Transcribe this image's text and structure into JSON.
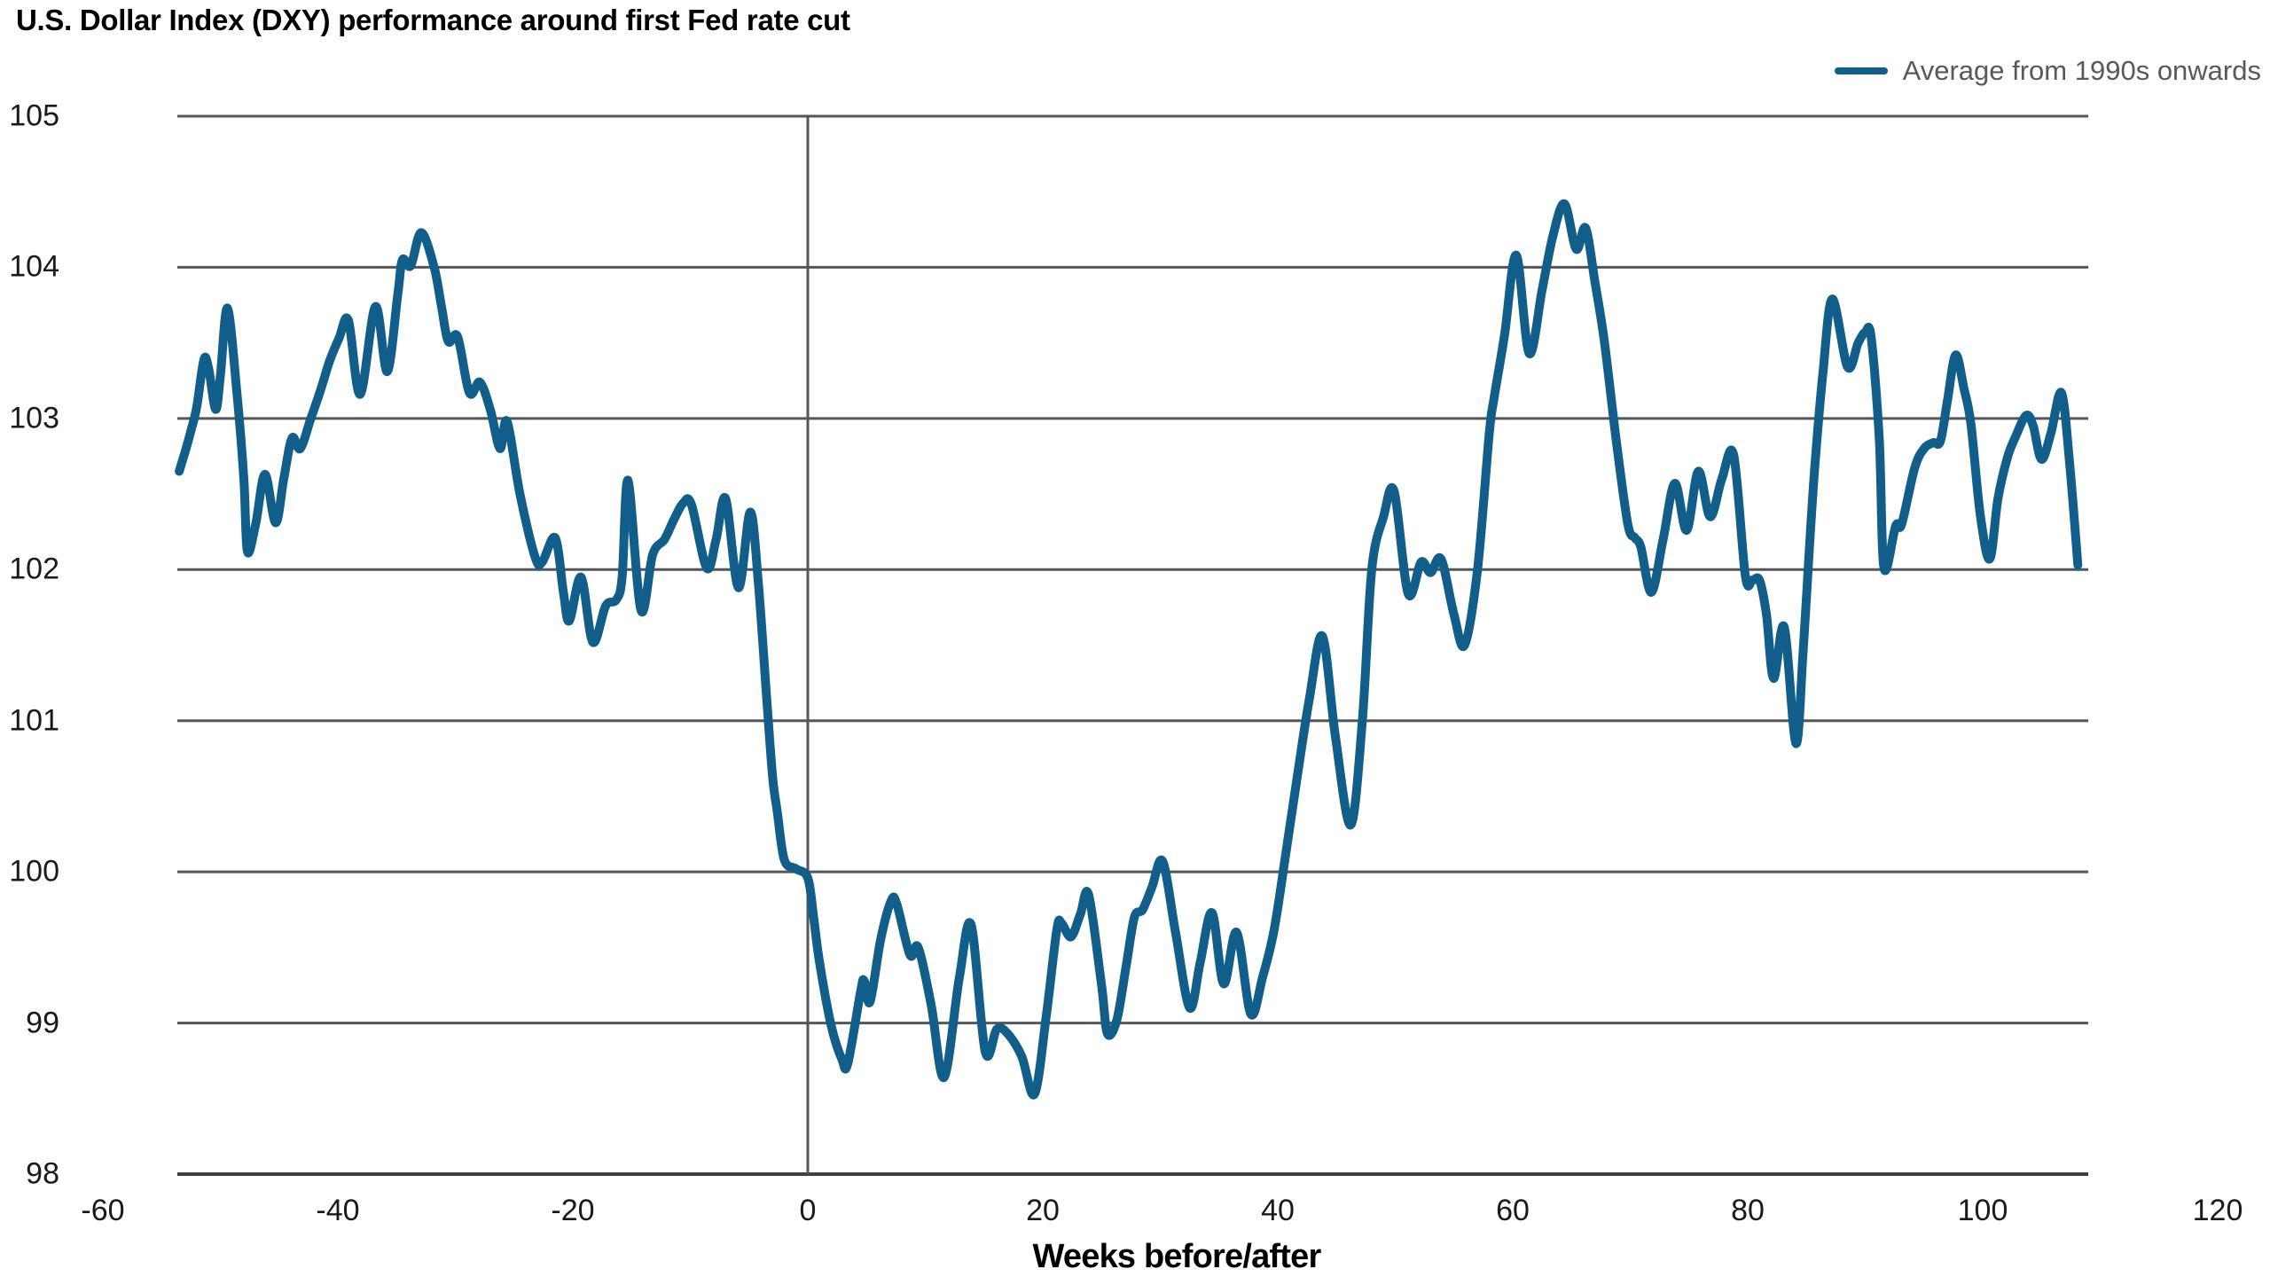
{
  "page": {
    "title": "U.S. Dollar Index (DXY) performance around first Fed rate cut"
  },
  "legend": {
    "label": "Average from 1990s onwards"
  },
  "colors": {
    "line": "#115E8A",
    "gridline": "#55565A",
    "axis_line": "#3F4043",
    "zero_line": "#55565A",
    "axis_text": "#1A1A1A",
    "legend_text": "#58595B",
    "background": "#FFFFFF"
  },
  "chart_data": {
    "type": "line",
    "title": "U.S. Dollar Index (DXY) performance around first Fed rate cut",
    "xlabel": "Weeks before/after",
    "ylabel": "",
    "xlim": [
      -60,
      120
    ],
    "ylim": [
      98,
      105
    ],
    "x_ticks": [
      -60,
      -40,
      -20,
      0,
      20,
      40,
      60,
      80,
      100,
      120
    ],
    "y_ticks": [
      98,
      99,
      100,
      101,
      102,
      103,
      104,
      105
    ],
    "grid": "horizontal",
    "vertical_reference_line_at_week": 0,
    "legend_position": "top-right",
    "series": [
      {
        "name": "Average from 1990s onwards",
        "color": "#115E8A",
        "points": [
          [
            -53.5,
            102.65
          ],
          [
            -53,
            102.78
          ],
          [
            -52.5,
            102.92
          ],
          [
            -52,
            103.08
          ],
          [
            -51.4,
            103.39
          ],
          [
            -51,
            103.33
          ],
          [
            -50.4,
            103.06
          ],
          [
            -50,
            103.28
          ],
          [
            -49.4,
            103.73
          ],
          [
            -48.6,
            103.18
          ],
          [
            -48,
            102.6
          ],
          [
            -47.7,
            102.12
          ],
          [
            -47,
            102.3
          ],
          [
            -46.2,
            102.63
          ],
          [
            -45.3,
            102.31
          ],
          [
            -44.6,
            102.6
          ],
          [
            -43.9,
            102.87
          ],
          [
            -43.2,
            102.8
          ],
          [
            -42.3,
            103.0
          ],
          [
            -41.5,
            103.18
          ],
          [
            -40.7,
            103.38
          ],
          [
            -39.9,
            103.53
          ],
          [
            -39.1,
            103.65
          ],
          [
            -38.1,
            103.16
          ],
          [
            -36.8,
            103.74
          ],
          [
            -35.8,
            103.31
          ],
          [
            -34.9,
            103.82
          ],
          [
            -34.5,
            104.05
          ],
          [
            -33.8,
            104.01
          ],
          [
            -32.9,
            104.23
          ],
          [
            -31.8,
            104.0
          ],
          [
            -31.2,
            103.75
          ],
          [
            -30.6,
            103.51
          ],
          [
            -29.8,
            103.54
          ],
          [
            -28.8,
            103.17
          ],
          [
            -27.9,
            103.24
          ],
          [
            -27,
            103.05
          ],
          [
            -26.2,
            102.8
          ],
          [
            -25.6,
            102.98
          ],
          [
            -24.5,
            102.5
          ],
          [
            -23.2,
            102.08
          ],
          [
            -22.6,
            102.05
          ],
          [
            -21.5,
            102.21
          ],
          [
            -20.8,
            101.85
          ],
          [
            -20.3,
            101.66
          ],
          [
            -19.3,
            101.95
          ],
          [
            -18.3,
            101.52
          ],
          [
            -17.2,
            101.76
          ],
          [
            -16.3,
            101.8
          ],
          [
            -15.8,
            101.95
          ],
          [
            -15.3,
            102.59
          ],
          [
            -14.2,
            101.73
          ],
          [
            -13.2,
            102.1
          ],
          [
            -12.2,
            102.2
          ],
          [
            -11.4,
            102.33
          ],
          [
            -10.6,
            102.44
          ],
          [
            -9.9,
            102.43
          ],
          [
            -8.6,
            102.01
          ],
          [
            -7.8,
            102.2
          ],
          [
            -7,
            102.47
          ],
          [
            -5.9,
            101.88
          ],
          [
            -4.9,
            102.38
          ],
          [
            -4.2,
            101.9
          ],
          [
            -3.5,
            101.15
          ],
          [
            -3,
            100.63
          ],
          [
            -2.6,
            100.4
          ],
          [
            -2,
            100.08
          ],
          [
            -1,
            100.02
          ],
          [
            0,
            99.96
          ],
          [
            0.5,
            99.7
          ],
          [
            1,
            99.4
          ],
          [
            2,
            98.98
          ],
          [
            2.9,
            98.76
          ],
          [
            3.4,
            98.73
          ],
          [
            4.5,
            99.21
          ],
          [
            4.8,
            99.28
          ],
          [
            5.3,
            99.14
          ],
          [
            6.2,
            99.55
          ],
          [
            7.1,
            99.81
          ],
          [
            7.6,
            99.78
          ],
          [
            8.7,
            99.45
          ],
          [
            9.4,
            99.5
          ],
          [
            10.5,
            99.12
          ],
          [
            11.6,
            98.64
          ],
          [
            12.9,
            99.3
          ],
          [
            13.9,
            99.65
          ],
          [
            15.1,
            98.81
          ],
          [
            16.1,
            98.96
          ],
          [
            17,
            98.93
          ],
          [
            18.2,
            98.78
          ],
          [
            19.3,
            98.53
          ],
          [
            20.3,
            99.05
          ],
          [
            21.2,
            99.62
          ],
          [
            21.6,
            99.66
          ],
          [
            22.4,
            99.57
          ],
          [
            23.2,
            99.72
          ],
          [
            23.9,
            99.85
          ],
          [
            25,
            99.25
          ],
          [
            25.5,
            98.93
          ],
          [
            26.3,
            99.02
          ],
          [
            27.1,
            99.38
          ],
          [
            27.8,
            99.7
          ],
          [
            28.5,
            99.75
          ],
          [
            29.3,
            99.9
          ],
          [
            30.2,
            100.07
          ],
          [
            31.3,
            99.6
          ],
          [
            32.5,
            99.1
          ],
          [
            33.4,
            99.4
          ],
          [
            34.4,
            99.73
          ],
          [
            35.4,
            99.26
          ],
          [
            36.5,
            99.6
          ],
          [
            37.7,
            99.06
          ],
          [
            38.7,
            99.3
          ],
          [
            39.7,
            99.62
          ],
          [
            40.7,
            100.13
          ],
          [
            41.7,
            100.65
          ],
          [
            42.7,
            101.15
          ],
          [
            43.8,
            101.56
          ],
          [
            44.9,
            100.9
          ],
          [
            46.2,
            100.31
          ],
          [
            47.2,
            101.0
          ],
          [
            48,
            102.0
          ],
          [
            49,
            102.35
          ],
          [
            49.9,
            102.52
          ],
          [
            51.1,
            101.84
          ],
          [
            52.2,
            102.05
          ],
          [
            53,
            101.98
          ],
          [
            53.9,
            102.07
          ],
          [
            55,
            101.7
          ],
          [
            55.9,
            101.5
          ],
          [
            57,
            102.0
          ],
          [
            58,
            102.9
          ],
          [
            58.4,
            103.13
          ],
          [
            59.3,
            103.55
          ],
          [
            60.3,
            104.08
          ],
          [
            61.4,
            103.43
          ],
          [
            62.5,
            103.85
          ],
          [
            63.4,
            104.2
          ],
          [
            64.4,
            104.42
          ],
          [
            65.4,
            104.12
          ],
          [
            66.2,
            104.26
          ],
          [
            67,
            103.9
          ],
          [
            67.8,
            103.51
          ],
          [
            68.8,
            102.86
          ],
          [
            69.8,
            102.3
          ],
          [
            70.4,
            102.21
          ],
          [
            70.9,
            102.15
          ],
          [
            71.8,
            101.85
          ],
          [
            72.8,
            102.2
          ],
          [
            73.8,
            102.57
          ],
          [
            74.8,
            102.26
          ],
          [
            75.8,
            102.65
          ],
          [
            76.8,
            102.35
          ],
          [
            77.8,
            102.6
          ],
          [
            78.8,
            102.76
          ],
          [
            79.8,
            101.96
          ],
          [
            80.4,
            101.93
          ],
          [
            81,
            101.93
          ],
          [
            81.6,
            101.7
          ],
          [
            82.2,
            101.28
          ],
          [
            83.1,
            101.62
          ],
          [
            84.1,
            100.85
          ],
          [
            84.7,
            101.44
          ],
          [
            85.2,
            102.08
          ],
          [
            85.7,
            102.67
          ],
          [
            86.4,
            103.3
          ],
          [
            87.2,
            103.79
          ],
          [
            88.5,
            103.34
          ],
          [
            89.4,
            103.5
          ],
          [
            90,
            103.57
          ],
          [
            90.5,
            103.54
          ],
          [
            91.2,
            102.86
          ],
          [
            91.6,
            102.01
          ],
          [
            92.6,
            102.29
          ],
          [
            93.1,
            102.3
          ],
          [
            94.2,
            102.67
          ],
          [
            95,
            102.8
          ],
          [
            95.8,
            102.84
          ],
          [
            96.4,
            102.85
          ],
          [
            97,
            103.12
          ],
          [
            97.7,
            103.42
          ],
          [
            98.4,
            103.2
          ],
          [
            99,
            102.96
          ],
          [
            99.8,
            102.36
          ],
          [
            100.6,
            102.07
          ],
          [
            101.3,
            102.47
          ],
          [
            102.1,
            102.74
          ],
          [
            102.8,
            102.88
          ],
          [
            103.7,
            103.02
          ],
          [
            104.3,
            102.95
          ],
          [
            105,
            102.73
          ],
          [
            105.8,
            102.9
          ],
          [
            106.7,
            103.17
          ],
          [
            107.4,
            102.7
          ],
          [
            108.1,
            102.03
          ]
        ]
      }
    ]
  }
}
